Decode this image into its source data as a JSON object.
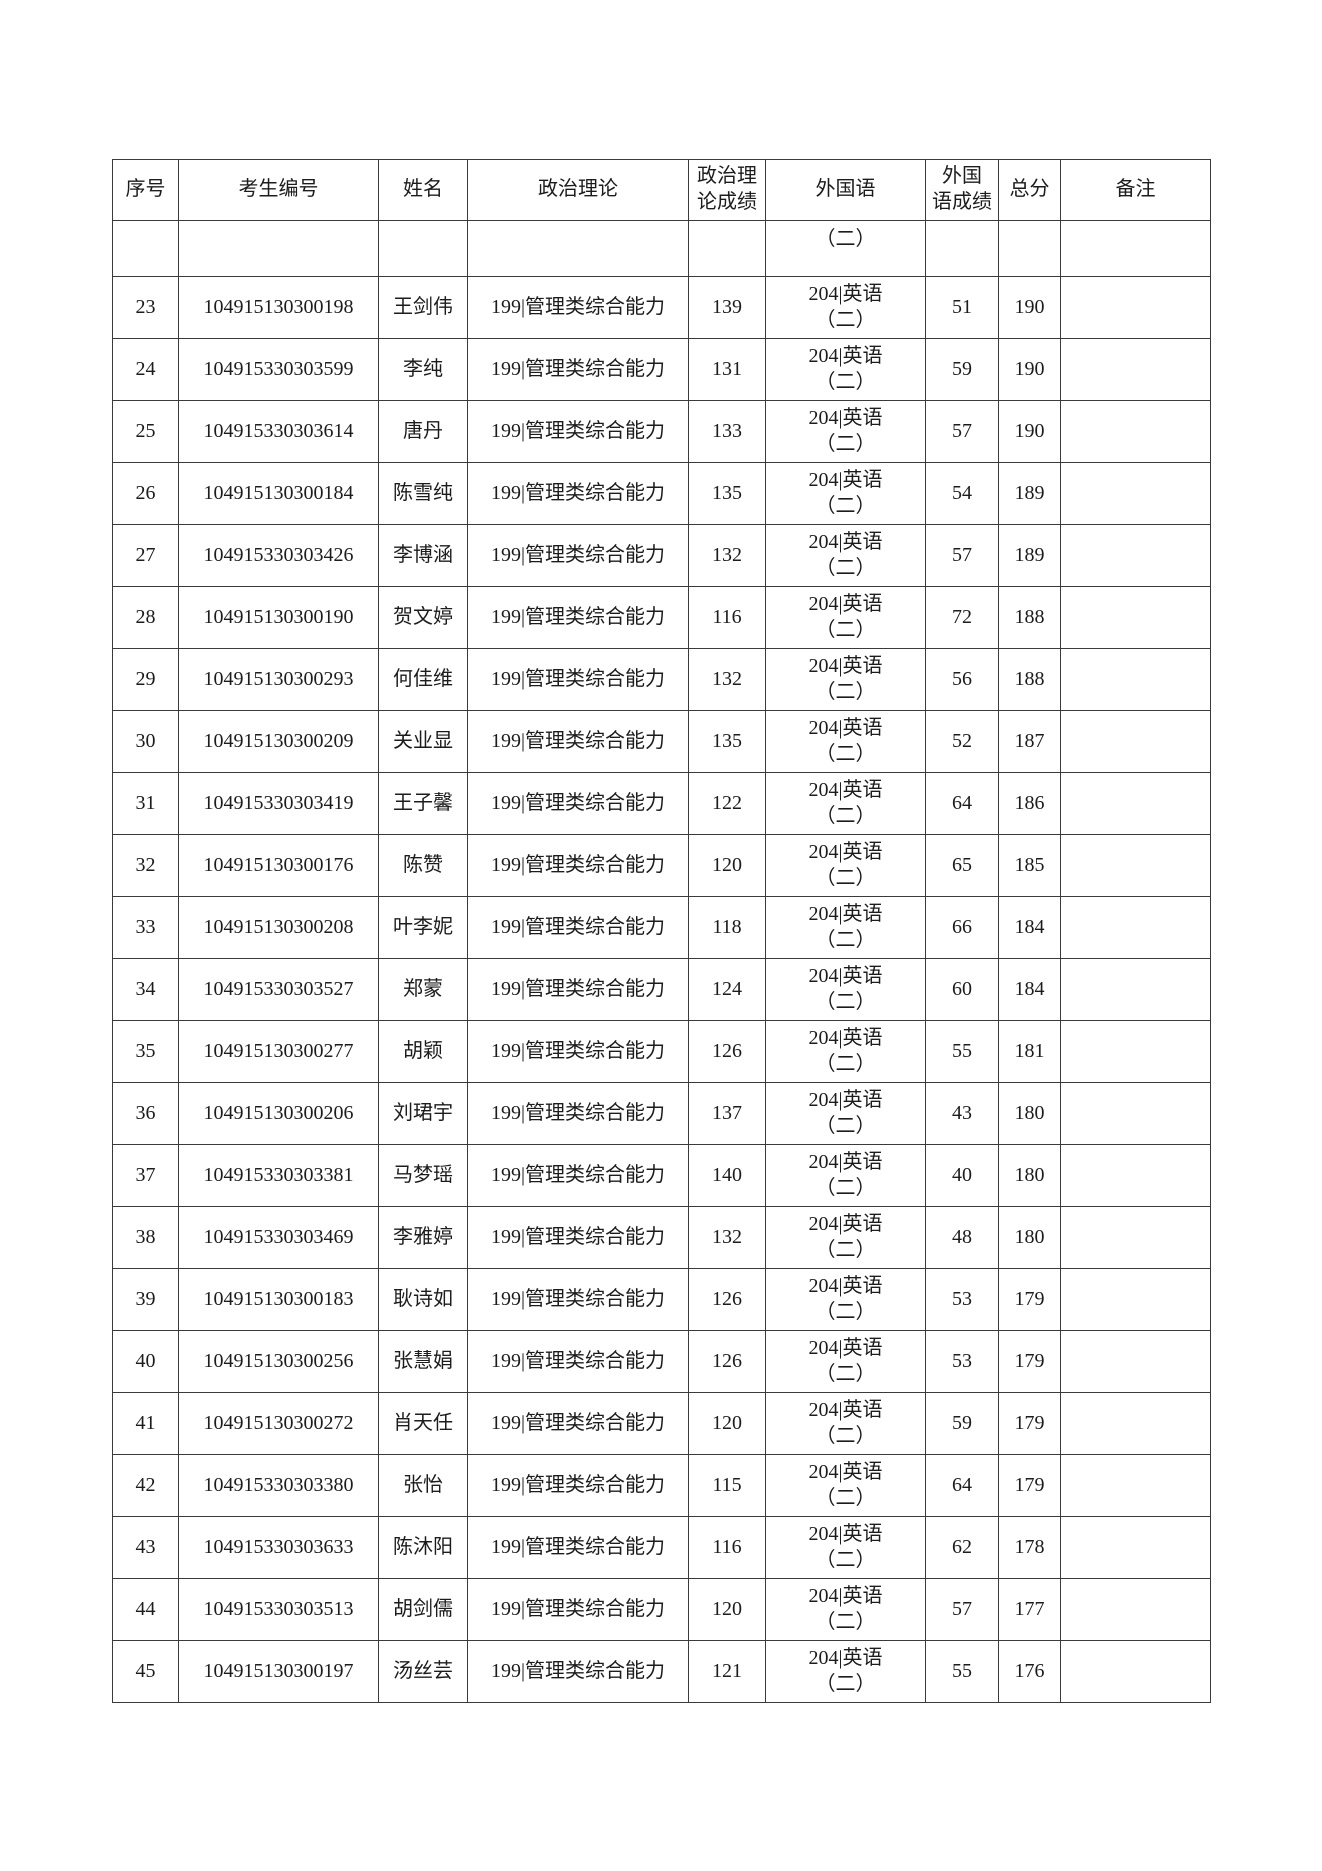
{
  "table": {
    "headers": [
      {
        "label": "序号"
      },
      {
        "label": "考生编号"
      },
      {
        "label": "姓名"
      },
      {
        "label": "政治理论"
      },
      {
        "label": [
          "政治理",
          "论成绩"
        ]
      },
      {
        "label": "外国语"
      },
      {
        "label": [
          "外国",
          "语成绩"
        ]
      },
      {
        "label": "总分"
      },
      {
        "label": "备注"
      }
    ],
    "carryover_row": {
      "no": "",
      "id": "",
      "name": "",
      "pol": "",
      "pol_score": "",
      "fl": "（二）",
      "fl_score": "",
      "total": "",
      "remark": ""
    },
    "rows": [
      {
        "no": "23",
        "id": "104915130300198",
        "name": "王剑伟",
        "pol": "199|管理类综合能力",
        "pol_score": "139",
        "fl": [
          "204|英语",
          "（二）"
        ],
        "fl_score": "51",
        "total": "190",
        "remark": ""
      },
      {
        "no": "24",
        "id": "104915330303599",
        "name": "李纯",
        "pol": "199|管理类综合能力",
        "pol_score": "131",
        "fl": [
          "204|英语",
          "（二）"
        ],
        "fl_score": "59",
        "total": "190",
        "remark": ""
      },
      {
        "no": "25",
        "id": "104915330303614",
        "name": "唐丹",
        "pol": "199|管理类综合能力",
        "pol_score": "133",
        "fl": [
          "204|英语",
          "（二）"
        ],
        "fl_score": "57",
        "total": "190",
        "remark": ""
      },
      {
        "no": "26",
        "id": "104915130300184",
        "name": "陈雪纯",
        "pol": "199|管理类综合能力",
        "pol_score": "135",
        "fl": [
          "204|英语",
          "（二）"
        ],
        "fl_score": "54",
        "total": "189",
        "remark": ""
      },
      {
        "no": "27",
        "id": "104915330303426",
        "name": "李博涵",
        "pol": "199|管理类综合能力",
        "pol_score": "132",
        "fl": [
          "204|英语",
          "（二）"
        ],
        "fl_score": "57",
        "total": "189",
        "remark": ""
      },
      {
        "no": "28",
        "id": "104915130300190",
        "name": "贺文婷",
        "pol": "199|管理类综合能力",
        "pol_score": "116",
        "fl": [
          "204|英语",
          "（二）"
        ],
        "fl_score": "72",
        "total": "188",
        "remark": ""
      },
      {
        "no": "29",
        "id": "104915130300293",
        "name": "何佳维",
        "pol": "199|管理类综合能力",
        "pol_score": "132",
        "fl": [
          "204|英语",
          "（二）"
        ],
        "fl_score": "56",
        "total": "188",
        "remark": ""
      },
      {
        "no": "30",
        "id": "104915130300209",
        "name": "关业显",
        "pol": "199|管理类综合能力",
        "pol_score": "135",
        "fl": [
          "204|英语",
          "（二）"
        ],
        "fl_score": "52",
        "total": "187",
        "remark": ""
      },
      {
        "no": "31",
        "id": "104915330303419",
        "name": "王子馨",
        "pol": "199|管理类综合能力",
        "pol_score": "122",
        "fl": [
          "204|英语",
          "（二）"
        ],
        "fl_score": "64",
        "total": "186",
        "remark": ""
      },
      {
        "no": "32",
        "id": "104915130300176",
        "name": "陈赞",
        "pol": "199|管理类综合能力",
        "pol_score": "120",
        "fl": [
          "204|英语",
          "（二）"
        ],
        "fl_score": "65",
        "total": "185",
        "remark": ""
      },
      {
        "no": "33",
        "id": "104915130300208",
        "name": "叶李妮",
        "pol": "199|管理类综合能力",
        "pol_score": "118",
        "fl": [
          "204|英语",
          "（二）"
        ],
        "fl_score": "66",
        "total": "184",
        "remark": ""
      },
      {
        "no": "34",
        "id": "104915330303527",
        "name": "郑蒙",
        "pol": "199|管理类综合能力",
        "pol_score": "124",
        "fl": [
          "204|英语",
          "（二）"
        ],
        "fl_score": "60",
        "total": "184",
        "remark": ""
      },
      {
        "no": "35",
        "id": "104915130300277",
        "name": "胡颖",
        "pol": "199|管理类综合能力",
        "pol_score": "126",
        "fl": [
          "204|英语",
          "（二）"
        ],
        "fl_score": "55",
        "total": "181",
        "remark": ""
      },
      {
        "no": "36",
        "id": "104915130300206",
        "name": "刘珺宇",
        "pol": "199|管理类综合能力",
        "pol_score": "137",
        "fl": [
          "204|英语",
          "（二）"
        ],
        "fl_score": "43",
        "total": "180",
        "remark": ""
      },
      {
        "no": "37",
        "id": "104915330303381",
        "name": "马梦瑶",
        "pol": "199|管理类综合能力",
        "pol_score": "140",
        "fl": [
          "204|英语",
          "（二）"
        ],
        "fl_score": "40",
        "total": "180",
        "remark": ""
      },
      {
        "no": "38",
        "id": "104915330303469",
        "name": "李雅婷",
        "pol": "199|管理类综合能力",
        "pol_score": "132",
        "fl": [
          "204|英语",
          "（二）"
        ],
        "fl_score": "48",
        "total": "180",
        "remark": ""
      },
      {
        "no": "39",
        "id": "104915130300183",
        "name": "耿诗如",
        "pol": "199|管理类综合能力",
        "pol_score": "126",
        "fl": [
          "204|英语",
          "（二）"
        ],
        "fl_score": "53",
        "total": "179",
        "remark": ""
      },
      {
        "no": "40",
        "id": "104915130300256",
        "name": "张慧娟",
        "pol": "199|管理类综合能力",
        "pol_score": "126",
        "fl": [
          "204|英语",
          "（二）"
        ],
        "fl_score": "53",
        "total": "179",
        "remark": ""
      },
      {
        "no": "41",
        "id": "104915130300272",
        "name": "肖天任",
        "pol": "199|管理类综合能力",
        "pol_score": "120",
        "fl": [
          "204|英语",
          "（二）"
        ],
        "fl_score": "59",
        "total": "179",
        "remark": ""
      },
      {
        "no": "42",
        "id": "104915330303380",
        "name": "张怡",
        "pol": "199|管理类综合能力",
        "pol_score": "115",
        "fl": [
          "204|英语",
          "（二）"
        ],
        "fl_score": "64",
        "total": "179",
        "remark": ""
      },
      {
        "no": "43",
        "id": "104915330303633",
        "name": "陈沐阳",
        "pol": "199|管理类综合能力",
        "pol_score": "116",
        "fl": [
          "204|英语",
          "（二）"
        ],
        "fl_score": "62",
        "total": "178",
        "remark": ""
      },
      {
        "no": "44",
        "id": "104915330303513",
        "name": "胡剑儒",
        "pol": "199|管理类综合能力",
        "pol_score": "120",
        "fl": [
          "204|英语",
          "（二）"
        ],
        "fl_score": "57",
        "total": "177",
        "remark": ""
      },
      {
        "no": "45",
        "id": "104915130300197",
        "name": "汤丝芸",
        "pol": "199|管理类综合能力",
        "pol_score": "121",
        "fl": [
          "204|英语",
          "（二）"
        ],
        "fl_score": "55",
        "total": "176",
        "remark": ""
      }
    ]
  }
}
